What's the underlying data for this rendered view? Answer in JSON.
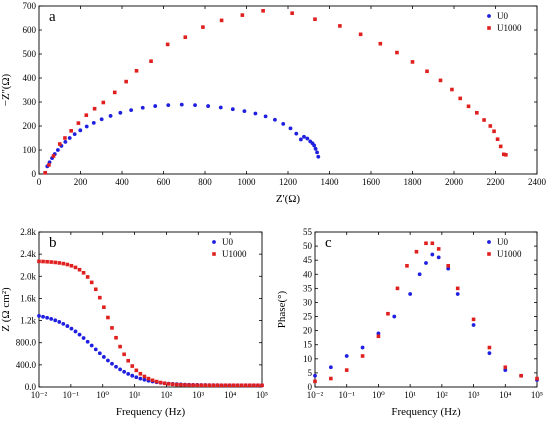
{
  "chart_data": [
    {
      "panel": "a",
      "type": "scatter",
      "xlabel": "Z'(Ω)",
      "ylabel": "−Z''(Ω)",
      "xlim": [
        0,
        2400
      ],
      "ylim": [
        0,
        700
      ],
      "xticks": [
        0,
        200,
        400,
        600,
        800,
        1000,
        1200,
        1400,
        1600,
        1800,
        2000,
        2200,
        2400
      ],
      "yticks": [
        0,
        100,
        200,
        300,
        400,
        500,
        600,
        700
      ],
      "legend_position": "top-right",
      "series": [
        {
          "name": "U0",
          "color": "#1f1fe0",
          "marker": "circle",
          "points": [
            [
              30,
              5
            ],
            [
              40,
              32
            ],
            [
              51,
              49
            ],
            [
              63,
              66
            ],
            [
              76,
              83
            ],
            [
              91,
              100
            ],
            [
              108,
              117
            ],
            [
              127,
              134
            ],
            [
              148,
              150
            ],
            [
              172,
              166
            ],
            [
              199,
              182
            ],
            [
              230,
              198
            ],
            [
              264,
              213
            ],
            [
              302,
              228
            ],
            [
              345,
              242
            ],
            [
              392,
              255
            ],
            [
              444,
              266
            ],
            [
              500,
              276
            ],
            [
              560,
              283
            ],
            [
              623,
              287
            ],
            [
              688,
              289
            ],
            [
              752,
              287
            ],
            [
              815,
              283
            ],
            [
              876,
              277
            ],
            [
              934,
              270
            ],
            [
              990,
              262
            ],
            [
              1043,
              252
            ],
            [
              1092,
              240
            ],
            [
              1137,
              226
            ],
            [
              1177,
              209
            ],
            [
              1212,
              190
            ],
            [
              1240,
              168
            ],
            [
              1262,
              144
            ],
            [
              1277,
              155
            ],
            [
              1293,
              148
            ],
            [
              1307,
              136
            ],
            [
              1318,
              128
            ],
            [
              1326,
              119
            ],
            [
              1333,
              105
            ],
            [
              1340,
              90
            ],
            [
              1346,
              72
            ]
          ]
        },
        {
          "name": "U1000",
          "color": "#e01f1f",
          "marker": "square",
          "points": [
            [
              30,
              5
            ],
            [
              48,
              38
            ],
            [
              70,
              75
            ],
            [
              100,
              125
            ],
            [
              125,
              150
            ],
            [
              155,
              180
            ],
            [
              190,
              212
            ],
            [
              228,
              245
            ],
            [
              268,
              272
            ],
            [
              310,
              298
            ],
            [
              365,
              340
            ],
            [
              420,
              385
            ],
            [
              470,
              430
            ],
            [
              540,
              470
            ],
            [
              620,
              540
            ],
            [
              705,
              570
            ],
            [
              790,
              612
            ],
            [
              880,
              640
            ],
            [
              980,
              662
            ],
            [
              1080,
              680
            ],
            [
              1220,
              670
            ],
            [
              1330,
              645
            ],
            [
              1450,
              617
            ],
            [
              1550,
              582
            ],
            [
              1645,
              543
            ],
            [
              1725,
              506
            ],
            [
              1800,
              467
            ],
            [
              1870,
              428
            ],
            [
              1935,
              390
            ],
            [
              1990,
              352
            ],
            [
              2030,
              315
            ],
            [
              2070,
              282
            ],
            [
              2110,
              255
            ],
            [
              2145,
              225
            ],
            [
              2175,
              200
            ],
            [
              2193,
              178
            ],
            [
              2210,
              145
            ],
            [
              2225,
              115
            ],
            [
              2240,
              82
            ],
            [
              2250,
              80
            ]
          ]
        }
      ]
    },
    {
      "panel": "b",
      "type": "scatter",
      "xlabel": "Frequency (Hz)",
      "ylabel": "Z (Ω cm²)",
      "xscale": "log",
      "xlim": [
        0.01,
        100000
      ],
      "ylim": [
        0,
        2800
      ],
      "xticks": [
        "10⁻²",
        "10⁻¹",
        "10⁰",
        "10¹",
        "10²",
        "10³",
        "10⁴",
        "10⁵"
      ],
      "yticks": [
        "0.0",
        "400.0",
        "800.0",
        "1.2k",
        "1.6k",
        "2.0k",
        "2.4k",
        "2.8k"
      ],
      "legend_position": "top-right",
      "series": [
        {
          "name": "U0",
          "color": "#1f1fe0",
          "marker": "circle",
          "law": {
            "rs": 30,
            "rct": 1330,
            "tau": 0.4,
            "p": 0.62
          },
          "log_f_range": [
            -2,
            5
          ],
          "n": 56
        },
        {
          "name": "U1000",
          "color": "#e01f1f",
          "marker": "square",
          "law": {
            "rs": 30,
            "rct": 2250,
            "tau": 0.15,
            "p": 0.85
          },
          "log_f_range": [
            -2,
            5
          ],
          "n": 56
        }
      ]
    },
    {
      "panel": "c",
      "type": "scatter",
      "xlabel": "Frequency (Hz)",
      "ylabel": "Phase(°)",
      "xscale": "log",
      "xlim": [
        0.01,
        100000
      ],
      "ylim": [
        0,
        55
      ],
      "xticks": [
        "10⁻²",
        "10⁻¹",
        "10⁰",
        "10¹",
        "10²",
        "10³",
        "10⁴",
        "10⁵"
      ],
      "yticks": [
        0,
        5,
        10,
        15,
        20,
        25,
        30,
        35,
        40,
        45,
        50,
        55
      ],
      "legend_position": "top-right",
      "series": [
        {
          "name": "U0",
          "color": "#1f1fe0",
          "marker": "circle",
          "points": [
            [
              -2,
              4
            ],
            [
              -1.5,
              7
            ],
            [
              -1,
              11
            ],
            [
              -0.5,
              14
            ],
            [
              0,
              19
            ],
            [
              0.5,
              25
            ],
            [
              1,
              33
            ],
            [
              1.3,
              40
            ],
            [
              1.5,
              44
            ],
            [
              1.7,
              47
            ],
            [
              1.9,
              46
            ],
            [
              2.2,
              42
            ],
            [
              2.5,
              33
            ],
            [
              3,
              22
            ],
            [
              3.5,
              12
            ],
            [
              4,
              6
            ],
            [
              4.5,
              4
            ],
            [
              5,
              2.5
            ]
          ]
        },
        {
          "name": "U1000",
          "color": "#e01f1f",
          "marker": "square",
          "points": [
            [
              -2,
              2
            ],
            [
              -1.5,
              3
            ],
            [
              -1,
              6
            ],
            [
              -0.5,
              11
            ],
            [
              0,
              18
            ],
            [
              0.3,
              26
            ],
            [
              0.6,
              35
            ],
            [
              0.9,
              43
            ],
            [
              1.2,
              48
            ],
            [
              1.5,
              51
            ],
            [
              1.7,
              51
            ],
            [
              1.9,
              49
            ],
            [
              2.2,
              43
            ],
            [
              2.5,
              35
            ],
            [
              3,
              24
            ],
            [
              3.5,
              14
            ],
            [
              4,
              7
            ],
            [
              4.5,
              4
            ],
            [
              5,
              3
            ]
          ]
        }
      ]
    }
  ]
}
